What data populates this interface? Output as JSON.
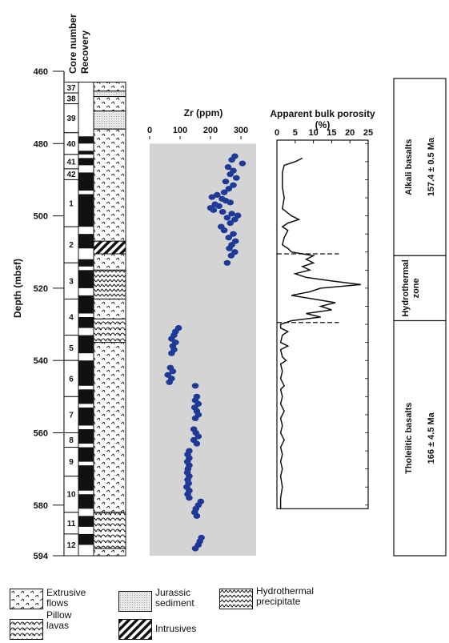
{
  "chart_data": {
    "type": "scatter",
    "depth_axis": {
      "label": "Depth (mbsf)",
      "ticks": [
        460,
        480,
        500,
        520,
        540,
        560,
        580,
        594
      ],
      "range": [
        460,
        594
      ]
    },
    "column_headers": [
      "Core number",
      "Recovery"
    ],
    "cores": [
      {
        "number": "37",
        "top": 463,
        "bottom": 466
      },
      {
        "number": "38",
        "top": 466,
        "bottom": 469
      },
      {
        "number": "39",
        "top": 469,
        "bottom": 477
      },
      {
        "number": "40",
        "top": 477,
        "bottom": 483
      },
      {
        "number": "41",
        "top": 483,
        "bottom": 487
      },
      {
        "number": "42",
        "top": 487,
        "bottom": 490
      },
      {
        "number": "1",
        "top": 490,
        "bottom": 503
      },
      {
        "number": "2",
        "top": 503,
        "bottom": 513
      },
      {
        "number": "3",
        "top": 513,
        "bottom": 523
      },
      {
        "number": "4",
        "top": 523,
        "bottom": 533
      },
      {
        "number": "5",
        "top": 533,
        "bottom": 540
      },
      {
        "number": "6",
        "top": 540,
        "bottom": 550
      },
      {
        "number": "7",
        "top": 550,
        "bottom": 560
      },
      {
        "number": "8",
        "top": 560,
        "bottom": 564
      },
      {
        "number": "9",
        "top": 564,
        "bottom": 572
      },
      {
        "number": "10",
        "top": 572,
        "bottom": 582
      },
      {
        "number": "11",
        "top": 582,
        "bottom": 588
      },
      {
        "number": "12",
        "top": 588,
        "bottom": 594
      }
    ],
    "recovery_intervals": [
      [
        478,
        480
      ],
      [
        482,
        483
      ],
      [
        484,
        486
      ],
      [
        488,
        493
      ],
      [
        494,
        503
      ],
      [
        505,
        509
      ],
      [
        512,
        514
      ],
      [
        515,
        520
      ],
      [
        522,
        527
      ],
      [
        528,
        531
      ],
      [
        533,
        538
      ],
      [
        540,
        547
      ],
      [
        548,
        552
      ],
      [
        553,
        558
      ],
      [
        559,
        563
      ],
      [
        564,
        568
      ],
      [
        569,
        576
      ],
      [
        577,
        581
      ],
      [
        583,
        586
      ],
      [
        588,
        591
      ]
    ],
    "lithology_units": [
      {
        "top": 463,
        "bottom": 465.5,
        "type": "extrusive"
      },
      {
        "top": 465.5,
        "bottom": 467,
        "type": "jurassic"
      },
      {
        "top": 467,
        "bottom": 471,
        "type": "extrusive"
      },
      {
        "top": 471,
        "bottom": 476,
        "type": "jurassic"
      },
      {
        "top": 476,
        "bottom": 507,
        "type": "extrusive"
      },
      {
        "top": 507,
        "bottom": 510.5,
        "type": "intrusive"
      },
      {
        "top": 510.5,
        "bottom": 515,
        "type": "extrusive"
      },
      {
        "top": 515,
        "bottom": 523,
        "type": "hydrothermal"
      },
      {
        "top": 523,
        "bottom": 528.5,
        "type": "extrusive"
      },
      {
        "top": 528.5,
        "bottom": 535,
        "type": "pillow"
      },
      {
        "top": 535,
        "bottom": 582,
        "type": "extrusive"
      },
      {
        "top": 582,
        "bottom": 592,
        "type": "pillow"
      },
      {
        "top": 592,
        "bottom": 594,
        "type": "extrusive"
      }
    ],
    "zr": {
      "title": "Zr (ppm)",
      "xlim": [
        0,
        350
      ],
      "ticks": [
        0,
        100,
        200,
        300
      ],
      "points": [
        {
          "x": 280,
          "y": 483.5
        },
        {
          "x": 270,
          "y": 484.5
        },
        {
          "x": 305,
          "y": 485.5
        },
        {
          "x": 258,
          "y": 486.5
        },
        {
          "x": 275,
          "y": 487.5
        },
        {
          "x": 265,
          "y": 488.5
        },
        {
          "x": 285,
          "y": 489.5
        },
        {
          "x": 250,
          "y": 490.5
        },
        {
          "x": 275,
          "y": 491.5
        },
        {
          "x": 260,
          "y": 492.5
        },
        {
          "x": 245,
          "y": 493.5
        },
        {
          "x": 222,
          "y": 494.2
        },
        {
          "x": 205,
          "y": 494.8
        },
        {
          "x": 238,
          "y": 495.3
        },
        {
          "x": 250,
          "y": 495.8
        },
        {
          "x": 265,
          "y": 496.3
        },
        {
          "x": 215,
          "y": 496.8
        },
        {
          "x": 228,
          "y": 497.3
        },
        {
          "x": 200,
          "y": 497.8
        },
        {
          "x": 210,
          "y": 498.4
        },
        {
          "x": 240,
          "y": 498.9
        },
        {
          "x": 270,
          "y": 499.4
        },
        {
          "x": 290,
          "y": 499.9
        },
        {
          "x": 255,
          "y": 500.5
        },
        {
          "x": 280,
          "y": 501
        },
        {
          "x": 265,
          "y": 502
        },
        {
          "x": 235,
          "y": 503
        },
        {
          "x": 245,
          "y": 504
        },
        {
          "x": 275,
          "y": 505
        },
        {
          "x": 260,
          "y": 506
        },
        {
          "x": 282,
          "y": 507
        },
        {
          "x": 270,
          "y": 508
        },
        {
          "x": 262,
          "y": 509
        },
        {
          "x": 280,
          "y": 510
        },
        {
          "x": 268,
          "y": 511
        },
        {
          "x": 255,
          "y": 513
        },
        {
          "x": 95,
          "y": 531
        },
        {
          "x": 85,
          "y": 532
        },
        {
          "x": 80,
          "y": 533
        },
        {
          "x": 72,
          "y": 534
        },
        {
          "x": 85,
          "y": 535
        },
        {
          "x": 76,
          "y": 536
        },
        {
          "x": 80,
          "y": 537
        },
        {
          "x": 72,
          "y": 538
        },
        {
          "x": 68,
          "y": 542
        },
        {
          "x": 76,
          "y": 543
        },
        {
          "x": 60,
          "y": 544
        },
        {
          "x": 72,
          "y": 545
        },
        {
          "x": 65,
          "y": 546
        },
        {
          "x": 150,
          "y": 547
        },
        {
          "x": 155,
          "y": 550
        },
        {
          "x": 150,
          "y": 551
        },
        {
          "x": 160,
          "y": 552
        },
        {
          "x": 148,
          "y": 553
        },
        {
          "x": 155,
          "y": 554
        },
        {
          "x": 160,
          "y": 555
        },
        {
          "x": 150,
          "y": 556
        },
        {
          "x": 145,
          "y": 559
        },
        {
          "x": 152,
          "y": 560
        },
        {
          "x": 160,
          "y": 561
        },
        {
          "x": 145,
          "y": 562
        },
        {
          "x": 155,
          "y": 563
        },
        {
          "x": 130,
          "y": 565
        },
        {
          "x": 125,
          "y": 566
        },
        {
          "x": 130,
          "y": 567
        },
        {
          "x": 124,
          "y": 568
        },
        {
          "x": 130,
          "y": 569
        },
        {
          "x": 126,
          "y": 570
        },
        {
          "x": 124,
          "y": 571
        },
        {
          "x": 130,
          "y": 572
        },
        {
          "x": 125,
          "y": 573
        },
        {
          "x": 128,
          "y": 574
        },
        {
          "x": 122,
          "y": 575
        },
        {
          "x": 130,
          "y": 576
        },
        {
          "x": 125,
          "y": 577
        },
        {
          "x": 130,
          "y": 578
        },
        {
          "x": 168,
          "y": 579
        },
        {
          "x": 160,
          "y": 580
        },
        {
          "x": 152,
          "y": 581
        },
        {
          "x": 148,
          "y": 582
        },
        {
          "x": 155,
          "y": 583
        },
        {
          "x": 170,
          "y": 589
        },
        {
          "x": 165,
          "y": 590
        },
        {
          "x": 160,
          "y": 591
        },
        {
          "x": 150,
          "y": 592
        }
      ]
    },
    "porosity": {
      "title": "Apparent bulk porosity",
      "unit": "(%)",
      "xlim": [
        0,
        25
      ],
      "ticks": [
        0,
        5,
        10,
        15,
        20,
        25
      ],
      "curve": [
        {
          "x": 7,
          "y": 484
        },
        {
          "x": 5,
          "y": 485
        },
        {
          "x": 2,
          "y": 486
        },
        {
          "x": 1.5,
          "y": 488
        },
        {
          "x": 1.5,
          "y": 492
        },
        {
          "x": 2,
          "y": 495
        },
        {
          "x": 1.5,
          "y": 498
        },
        {
          "x": 4,
          "y": 500
        },
        {
          "x": 6,
          "y": 501
        },
        {
          "x": 3,
          "y": 502
        },
        {
          "x": 1.5,
          "y": 503
        },
        {
          "x": 3,
          "y": 504
        },
        {
          "x": 2,
          "y": 506
        },
        {
          "x": 1.5,
          "y": 508
        },
        {
          "x": 3,
          "y": 509
        },
        {
          "x": 4,
          "y": 510
        },
        {
          "x": 10,
          "y": 511
        },
        {
          "x": 8,
          "y": 512
        },
        {
          "x": 10,
          "y": 513
        },
        {
          "x": 7,
          "y": 514
        },
        {
          "x": 9,
          "y": 515
        },
        {
          "x": 5,
          "y": 516
        },
        {
          "x": 8,
          "y": 517
        },
        {
          "x": 15,
          "y": 518
        },
        {
          "x": 23,
          "y": 519
        },
        {
          "x": 12,
          "y": 520
        },
        {
          "x": 9,
          "y": 521
        },
        {
          "x": 4,
          "y": 522
        },
        {
          "x": 10,
          "y": 523
        },
        {
          "x": 16,
          "y": 524
        },
        {
          "x": 12,
          "y": 525
        },
        {
          "x": 15,
          "y": 526
        },
        {
          "x": 8,
          "y": 527
        },
        {
          "x": 12,
          "y": 528
        },
        {
          "x": 4,
          "y": 529
        },
        {
          "x": 1,
          "y": 530
        },
        {
          "x": 1,
          "y": 531
        },
        {
          "x": 3,
          "y": 532
        },
        {
          "x": 1.5,
          "y": 533
        },
        {
          "x": 1,
          "y": 535
        },
        {
          "x": 3,
          "y": 536
        },
        {
          "x": 1,
          "y": 537
        },
        {
          "x": 1.5,
          "y": 539
        },
        {
          "x": 2.5,
          "y": 540
        },
        {
          "x": 1,
          "y": 541
        },
        {
          "x": 1.5,
          "y": 543
        },
        {
          "x": 1,
          "y": 545
        },
        {
          "x": 2,
          "y": 547
        },
        {
          "x": 1,
          "y": 548
        },
        {
          "x": 1.5,
          "y": 550
        },
        {
          "x": 1,
          "y": 552
        },
        {
          "x": 2,
          "y": 554
        },
        {
          "x": 1,
          "y": 556
        },
        {
          "x": 1.5,
          "y": 558
        },
        {
          "x": 1,
          "y": 560
        },
        {
          "x": 2,
          "y": 562
        },
        {
          "x": 1,
          "y": 564
        },
        {
          "x": 1.5,
          "y": 566
        },
        {
          "x": 1,
          "y": 568
        },
        {
          "x": 1.5,
          "y": 570
        },
        {
          "x": 1,
          "y": 572
        },
        {
          "x": 1.5,
          "y": 575
        },
        {
          "x": 1,
          "y": 578
        },
        {
          "x": 1,
          "y": 581
        }
      ],
      "dashed_marks": [
        510.5,
        529.5
      ]
    },
    "zones": [
      {
        "label": "Alkali  basalts",
        "top": 462,
        "bottom": 511,
        "age": "157.4 ± 0.5 Ma"
      },
      {
        "label": "Hydrothermal zone",
        "top": 511,
        "bottom": 529,
        "age": ""
      },
      {
        "label": "Tholeiitic basalts",
        "top": 529,
        "bottom": 594,
        "age": "166 ± 4.5 Ma"
      }
    ]
  },
  "legend": {
    "extrusive": "Extrusive flows",
    "jurassic": "Jurassic sediment",
    "hydrothermal": "Hydrothermal precipitate",
    "pillow": "Pillow lavas",
    "intrusive": "Intrusives"
  },
  "colors": {
    "points": "#1e3a96",
    "zr_panel_bg": "#d4d4d4",
    "recovered": "#111111",
    "stroke": "#111111"
  }
}
